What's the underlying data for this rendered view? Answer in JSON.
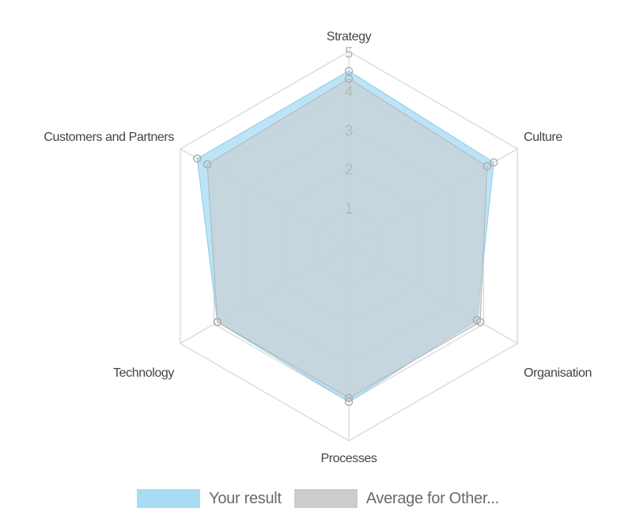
{
  "chart_data": {
    "type": "radar",
    "categories": [
      "Strategy",
      "Culture",
      "Organisation",
      "Processes",
      "Technology",
      "Customers and Partners"
    ],
    "scale": {
      "min": 0,
      "max": 5,
      "ticks": [
        1,
        2,
        3,
        4,
        5
      ]
    },
    "series": [
      {
        "name": "Your result",
        "values": [
          4.5,
          4.3,
          3.8,
          4.0,
          3.9,
          4.5
        ],
        "color": "#a9dbf3"
      },
      {
        "name": "Average for Other...",
        "values": [
          4.3,
          4.1,
          3.9,
          3.9,
          3.9,
          4.2
        ],
        "color": "#cccccc"
      }
    ],
    "grid": true,
    "legend_position": "bottom"
  }
}
